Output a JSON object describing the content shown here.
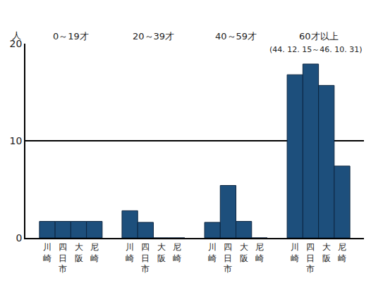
{
  "chart_data": {
    "type": "bar",
    "subtitle": "(44. 12. 15～46. 10. 31)",
    "y_label": "人",
    "categories": [
      "0～19才",
      "20～39才",
      "40～59才",
      "60才以上"
    ],
    "series": [
      {
        "name": "川崎",
        "color": "#1d4f7c",
        "values": [
          1.7,
          2.8,
          1.6,
          16.8
        ]
      },
      {
        "name": "四日市",
        "color": "#1d4f7c",
        "values": [
          1.7,
          1.6,
          5.4,
          17.9
        ]
      },
      {
        "name": "大阪",
        "color": "#1d4f7c",
        "values": [
          1.7,
          0,
          1.7,
          15.7
        ]
      },
      {
        "name": "尼崎",
        "color": "#1d4f7c",
        "values": [
          1.7,
          0,
          0,
          7.4
        ]
      }
    ],
    "ylim": [
      0,
      20
    ],
    "yticks": [
      0,
      10,
      20
    ],
    "grid": true,
    "tick_labels": "y"
  }
}
